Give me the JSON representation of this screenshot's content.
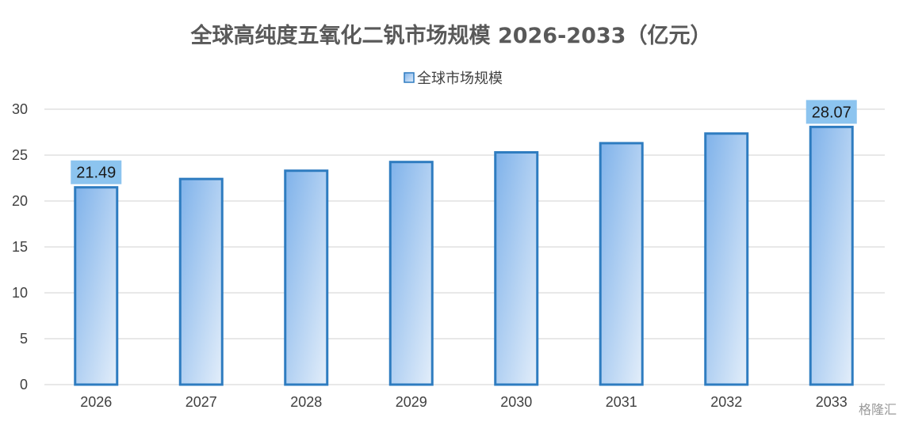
{
  "chart_data": {
    "type": "bar",
    "title": "全球高纯度五氧化二钒市场规模 2026-2033（亿元）",
    "xlabel": "",
    "ylabel": "",
    "categories": [
      "2026",
      "2027",
      "2028",
      "2029",
      "2030",
      "2031",
      "2032",
      "2033"
    ],
    "series": [
      {
        "name": "全球市场规模",
        "values": [
          21.49,
          22.4,
          23.3,
          24.25,
          25.3,
          26.3,
          27.35,
          28.07
        ]
      }
    ],
    "data_labels": [
      {
        "category": "2026",
        "text": "21.49"
      },
      {
        "category": "2033",
        "text": "28.07"
      }
    ],
    "ylim": [
      0,
      30
    ],
    "yticks": [
      0,
      5,
      10,
      15,
      20,
      25,
      30
    ],
    "grid": true,
    "legend_position": "top-center",
    "colors": {
      "bar_fill_top": "#7fb2ea",
      "bar_fill_bottom": "#e3eefa",
      "bar_border": "#2e7cc0",
      "label_background": "#8cc4ef"
    }
  },
  "watermark": "格隆汇"
}
